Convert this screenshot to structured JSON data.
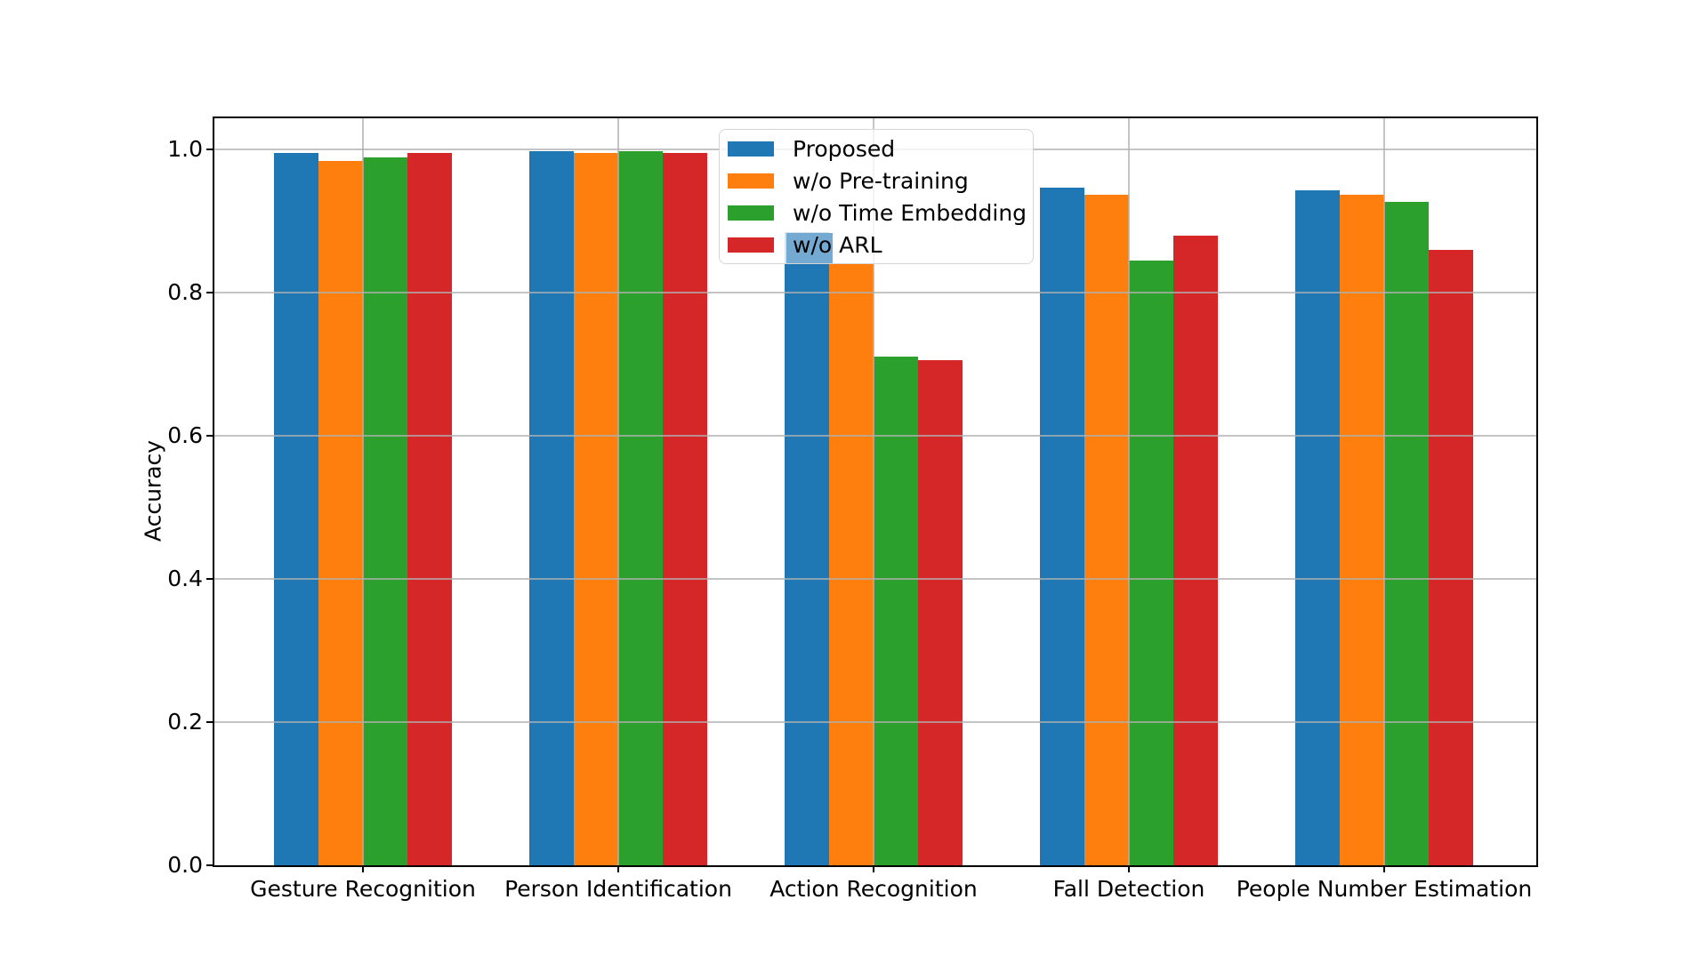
{
  "chart_data": {
    "type": "bar",
    "title": "",
    "xlabel": "",
    "ylabel": "Accuracy",
    "categories": [
      "Gesture Recognition",
      "Person Identification",
      "Action Recognition",
      "Fall Detection",
      "People Number Estimation"
    ],
    "series": [
      {
        "name": "Proposed",
        "color": "#1f77b4",
        "values": [
          0.995,
          0.997,
          0.885,
          0.947,
          0.943
        ]
      },
      {
        "name": "w/o Pre-training",
        "color": "#ff7f0e",
        "values": [
          0.984,
          0.995,
          0.84,
          0.937,
          0.937
        ]
      },
      {
        "name": "w/o Time Embedding",
        "color": "#2ca02c",
        "values": [
          0.989,
          0.998,
          0.71,
          0.845,
          0.927
        ]
      },
      {
        "name": "w/o ARL",
        "color": "#d62728",
        "values": [
          0.995,
          0.995,
          0.705,
          0.88,
          0.86
        ]
      }
    ],
    "yticks": [
      0.0,
      0.2,
      0.4,
      0.6,
      0.8,
      1.0
    ],
    "ytick_labels": [
      "0.0",
      "0.2",
      "0.4",
      "0.6",
      "0.8",
      "1.0"
    ],
    "ylim": [
      0.0,
      1.046
    ],
    "grid": true,
    "gridline_color": "#b0b0b0",
    "legend_position": "upper center, inside axes"
  },
  "legend_overlay": {
    "highlighted_entry": "w/o ARL",
    "highlighted_text": "w/o",
    "highlight_color": "#74a9d2",
    "note": "blue bar of Action Recognition showing through semi-transparent legend"
  }
}
